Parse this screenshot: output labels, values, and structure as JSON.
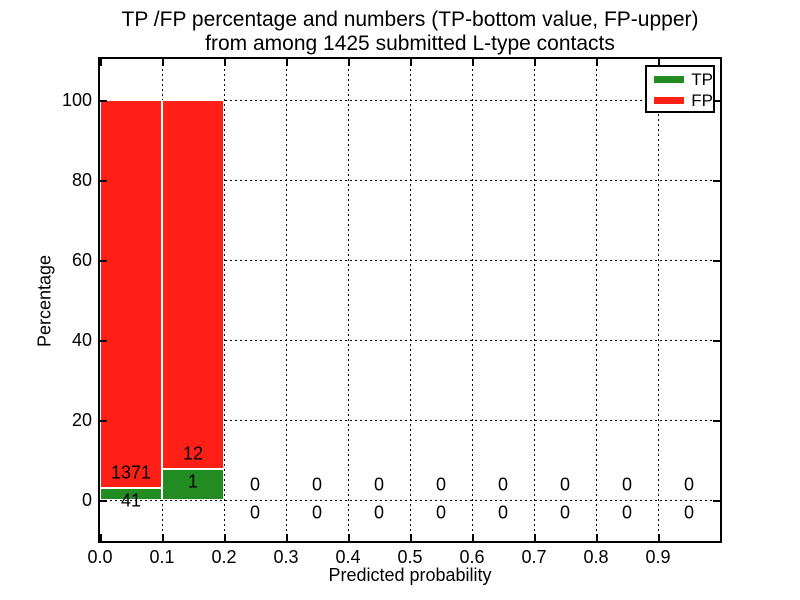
{
  "title": {
    "line1": "TP /FP percentage and numbers (TP-bottom value, FP-upper)",
    "line2": "from among 1425 submitted L-type contacts"
  },
  "axis": {
    "xlabel": "Predicted probability",
    "ylabel": "Percentage"
  },
  "legend": {
    "items": [
      {
        "label": "TP",
        "color": "#228b22"
      },
      {
        "label": "FP",
        "color": "#fe2016"
      }
    ]
  },
  "chart_data": {
    "type": "bar",
    "stacked": true,
    "title": "TP /FP percentage and numbers (TP-bottom value, FP-upper) from among 1425 submitted L-type contacts",
    "xlabel": "Predicted probability",
    "ylabel": "Percentage",
    "total_submitted_contacts": 1425,
    "grid": "dotted",
    "legend_position": "upper right",
    "xlim": [
      0,
      1
    ],
    "ylim": [
      -10,
      110
    ],
    "yticks": [
      0,
      20,
      40,
      60,
      80,
      100
    ],
    "xticks": [
      0.0,
      0.1,
      0.2,
      0.3,
      0.4,
      0.5,
      0.6,
      0.7,
      0.8,
      0.9
    ],
    "series": [
      {
        "name": "TP",
        "color": "#228b22"
      },
      {
        "name": "FP",
        "color": "#fe2016"
      }
    ],
    "bins": [
      {
        "x0": 0.0,
        "x1": 0.1,
        "tp_count": 41,
        "fp_count": 1371,
        "tp_pct": 2.9,
        "fp_pct": 97.1
      },
      {
        "x0": 0.1,
        "x1": 0.2,
        "tp_count": 1,
        "fp_count": 12,
        "tp_pct": 7.69,
        "fp_pct": 92.31
      },
      {
        "x0": 0.2,
        "x1": 0.3,
        "tp_count": 0,
        "fp_count": 0,
        "tp_pct": 0,
        "fp_pct": 0
      },
      {
        "x0": 0.3,
        "x1": 0.4,
        "tp_count": 0,
        "fp_count": 0,
        "tp_pct": 0,
        "fp_pct": 0
      },
      {
        "x0": 0.4,
        "x1": 0.5,
        "tp_count": 0,
        "fp_count": 0,
        "tp_pct": 0,
        "fp_pct": 0
      },
      {
        "x0": 0.5,
        "x1": 0.6,
        "tp_count": 0,
        "fp_count": 0,
        "tp_pct": 0,
        "fp_pct": 0
      },
      {
        "x0": 0.6,
        "x1": 0.7,
        "tp_count": 0,
        "fp_count": 0,
        "tp_pct": 0,
        "fp_pct": 0
      },
      {
        "x0": 0.7,
        "x1": 0.8,
        "tp_count": 0,
        "fp_count": 0,
        "tp_pct": 0,
        "fp_pct": 0
      },
      {
        "x0": 0.8,
        "x1": 0.9,
        "tp_count": 0,
        "fp_count": 0,
        "tp_pct": 0,
        "fp_pct": 0
      },
      {
        "x0": 0.9,
        "x1": 1.0,
        "tp_count": 0,
        "fp_count": 0,
        "tp_pct": 0,
        "fp_pct": 0
      }
    ]
  }
}
